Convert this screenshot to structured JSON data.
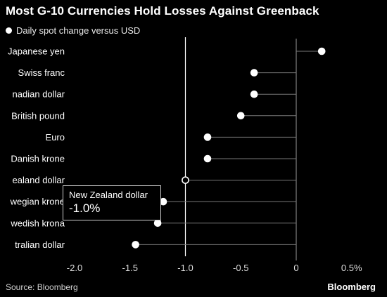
{
  "chart_data": {
    "type": "scatter",
    "title": "Most G-10 Currencies Hold Losses Against Greenback",
    "legend": "Daily spot change versus USD",
    "categories": [
      "Japanese yen",
      "Swiss franc",
      "Canadian dollar",
      "British pound",
      "Euro",
      "Danish krone",
      "New Zealand dollar",
      "Norwegian krone",
      "Swedish krona",
      "Australian dollar"
    ],
    "category_labels": [
      "Japanese yen",
      "Swiss franc",
      "nadian dollar",
      "British pound",
      "Euro",
      "Danish krone",
      "ealand dollar",
      "wegian krone",
      "wedish krona",
      "tralian dollar"
    ],
    "values": [
      0.23,
      -0.38,
      -0.38,
      -0.5,
      -0.8,
      -0.8,
      -1.0,
      -1.2,
      -1.25,
      -1.45
    ],
    "xlim": [
      -2.1,
      0.55
    ],
    "xticks": [
      -2.0,
      -1.5,
      -1.0,
      -0.5,
      0,
      0.5
    ],
    "xtick_labels": [
      "-2.0",
      "-1.5",
      "-1.0",
      "-0.5",
      "0",
      "0.5%"
    ],
    "reference_line": -1.0,
    "highlighted_index": 6,
    "colors": {
      "background": "#000000",
      "dot": "#ffffff",
      "stem": "#777777",
      "axis": "#9a9a9a"
    }
  },
  "tooltip": {
    "name": "New Zealand dollar",
    "value": "-1.0%"
  },
  "footer": {
    "source": "Source: Bloomberg",
    "brand": "Bloomberg"
  }
}
